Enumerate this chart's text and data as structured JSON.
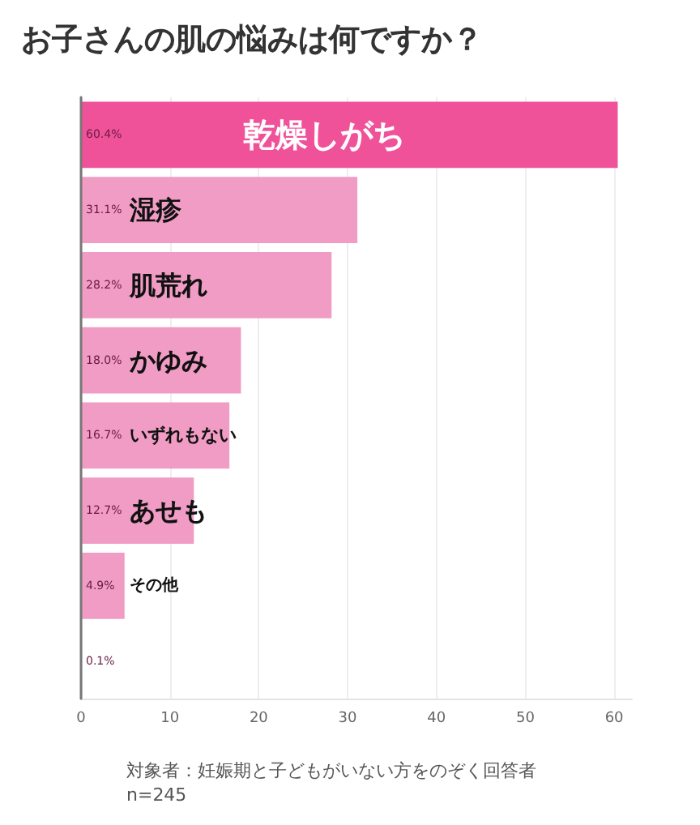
{
  "chart_data": {
    "type": "bar",
    "orientation": "horizontal",
    "title": "お子さんの肌の悩みは何ですか？",
    "categories": [
      "乾燥しがち",
      "湿疹",
      "肌荒れ",
      "かゆみ",
      "いずれもない",
      "あせも",
      "その他",
      null
    ],
    "values": [
      60.4,
      31.1,
      28.2,
      18.0,
      16.7,
      12.7,
      4.9,
      0.1
    ],
    "value_labels": [
      "60.4%",
      "31.1%",
      "28.2%",
      "18.0%",
      "16.7%",
      "12.7%",
      "4.9%",
      "0.1%"
    ],
    "colors": [
      "#f0529a",
      "#f09cc4",
      "#f09cc4",
      "#f09cc4",
      "#f09cc4",
      "#f09cc4",
      "#f09cc4",
      "#f09cc4"
    ],
    "xlim": [
      0,
      62
    ],
    "xticks": [
      0,
      10,
      20,
      30,
      40,
      50,
      60
    ],
    "grid": "x",
    "annotations": [
      "対象者：妊娠期と子どもがいない方をのぞく回答者",
      "n=245"
    ]
  }
}
